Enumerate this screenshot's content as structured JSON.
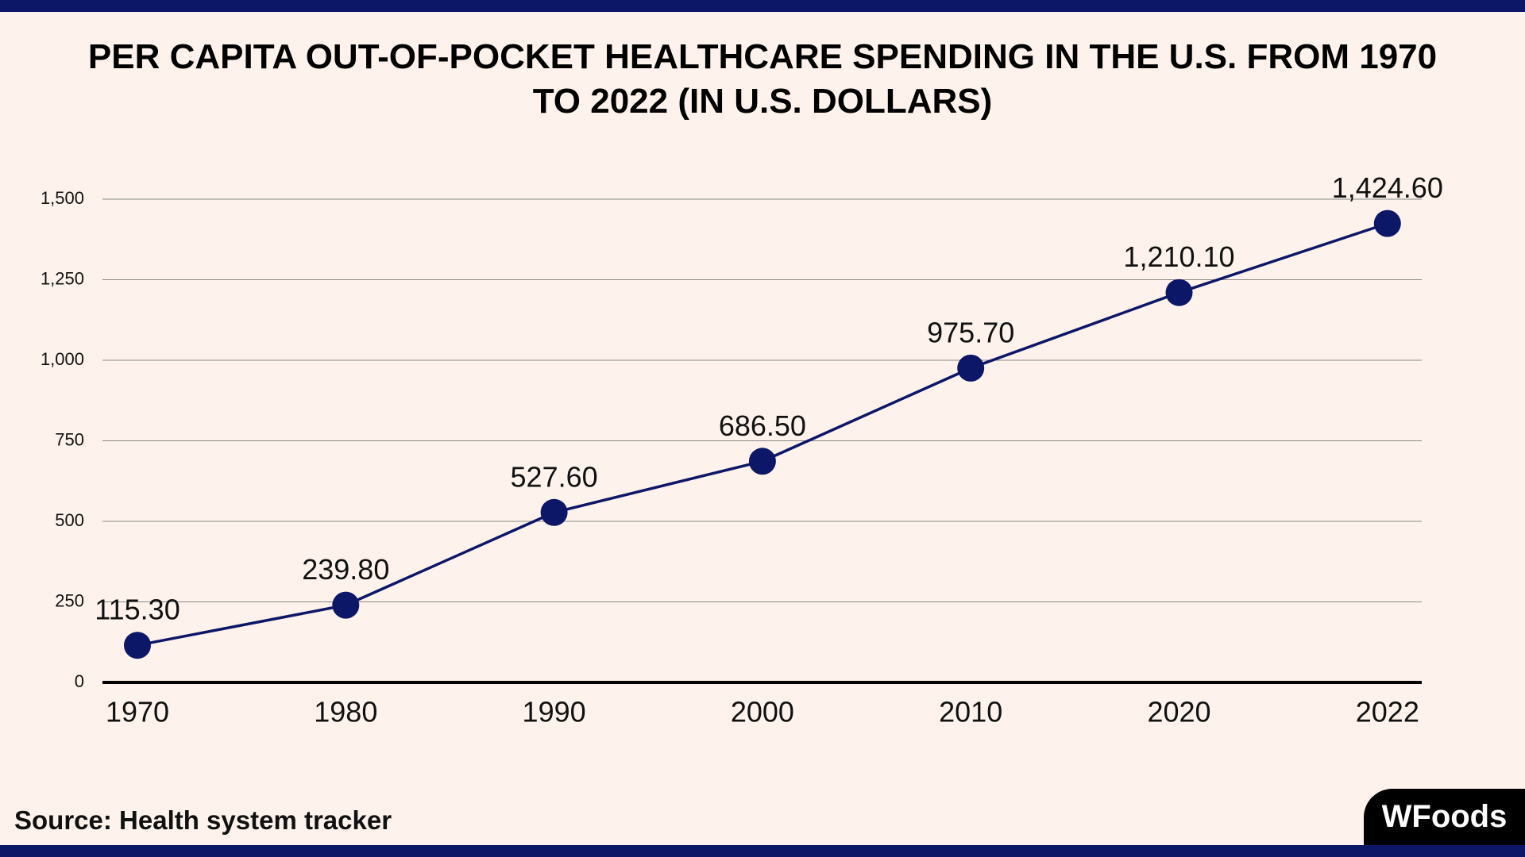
{
  "chart_data": {
    "type": "line",
    "title": "PER CAPITA OUT-OF-POCKET HEALTHCARE SPENDING IN THE U.S. FROM 1970 TO 2022 (IN U.S. DOLLARS)",
    "categories": [
      "1970",
      "1980",
      "1990",
      "2000",
      "2010",
      "2020",
      "2022"
    ],
    "series": [
      {
        "color": "#0d1768",
        "values": [
          115.3,
          239.8,
          527.6,
          686.5,
          975.7,
          1210.1,
          1424.6
        ],
        "value_labels": [
          "115.30",
          "239.80",
          "527.60",
          "686.50",
          "975.70",
          "1,210.10",
          "1,424.60"
        ]
      }
    ],
    "ylim": [
      0,
      1500
    ],
    "yticks": [
      0,
      250,
      500,
      750,
      {
        "value": 1000,
        "label": "1,000"
      },
      {
        "value": 1250,
        "label": "1,250"
      },
      {
        "value": 1500,
        "label": "1,500"
      }
    ],
    "grid": true,
    "source": "Source: Health system tracker"
  },
  "logo": "WFoods"
}
